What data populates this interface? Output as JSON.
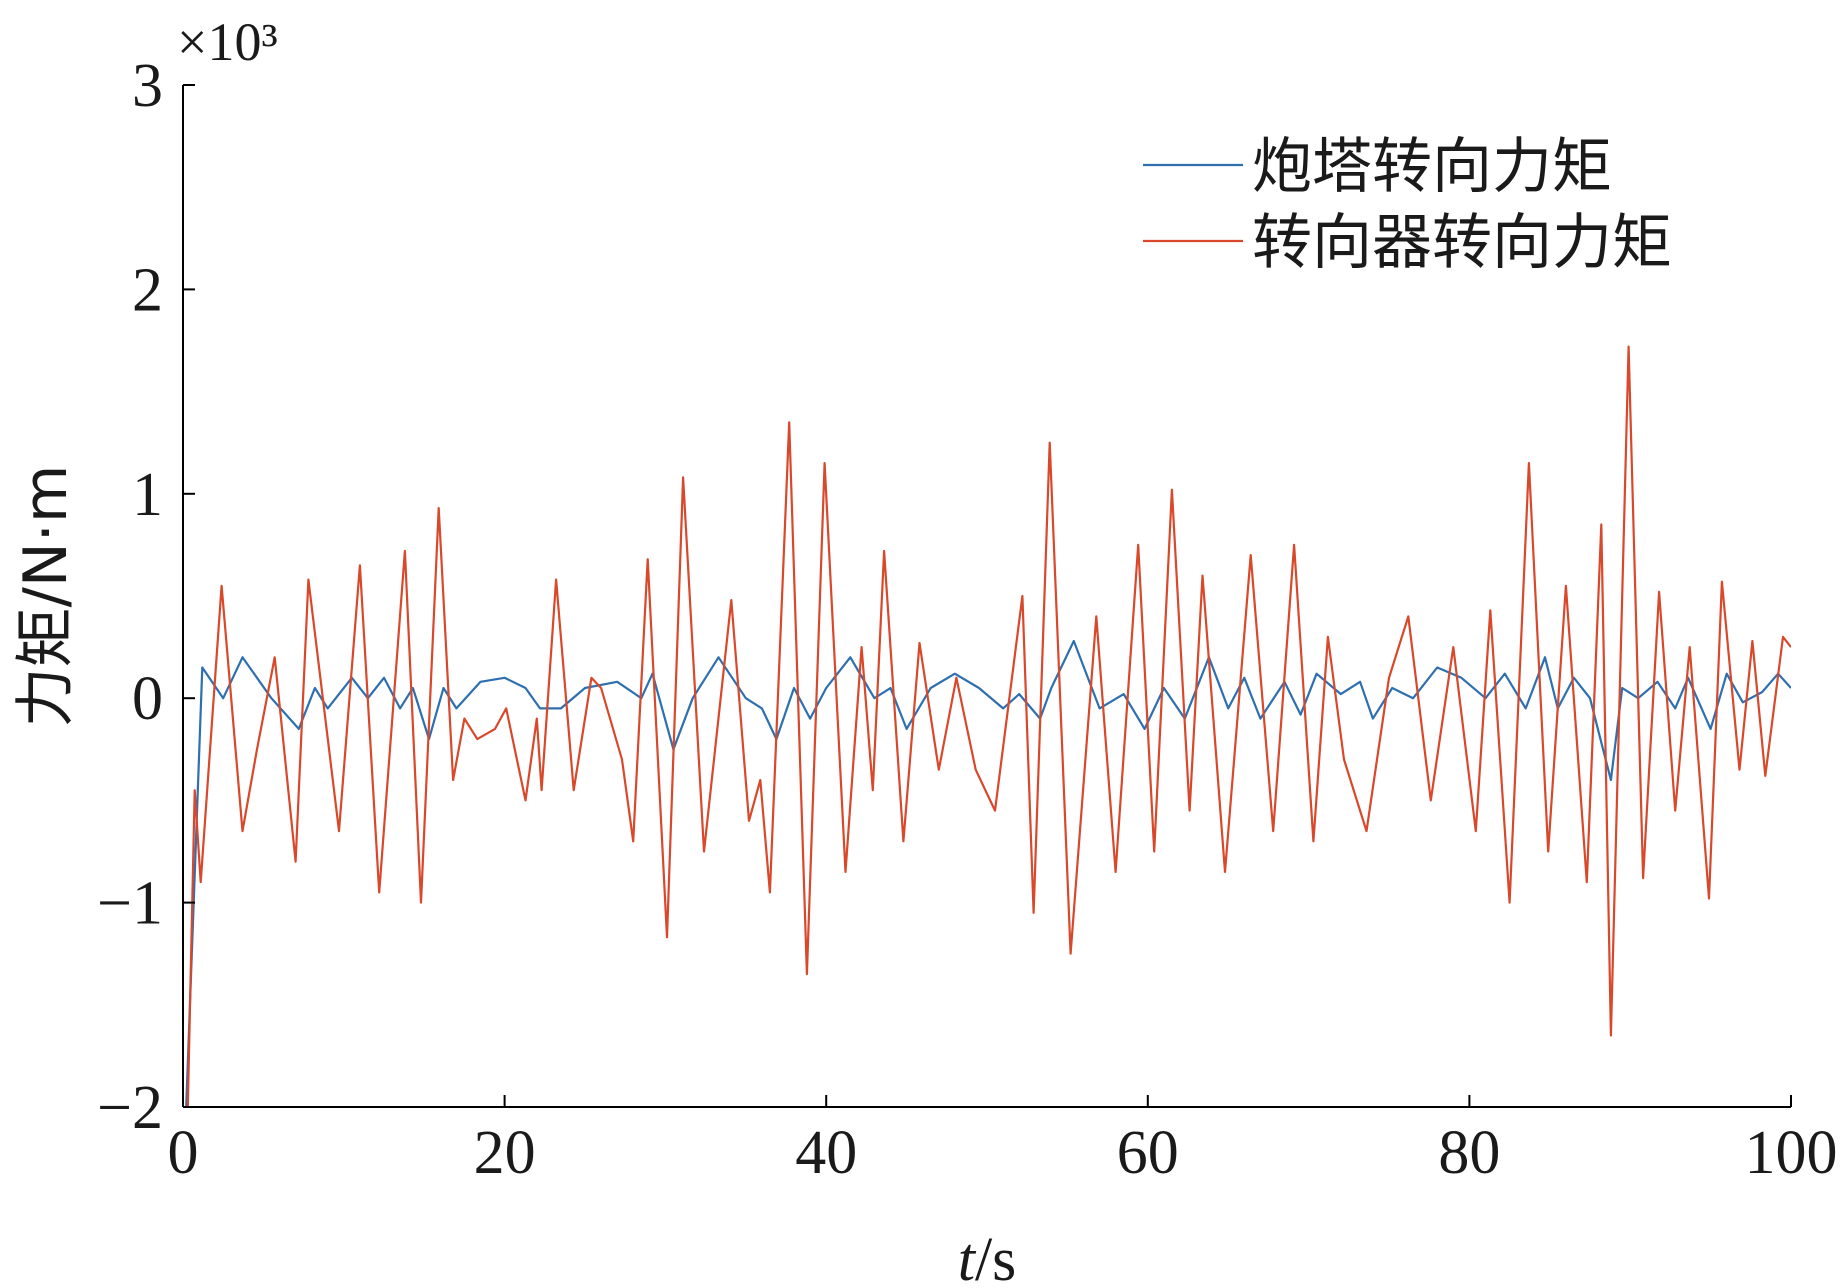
{
  "chart_data": {
    "type": "line",
    "y_multiplier": "×10³",
    "ylabel": "力矩/N·m",
    "xlabel_var": "t",
    "xlabel_unit": "/s",
    "xlim": [
      0,
      100
    ],
    "xticks": [
      0,
      20,
      40,
      60,
      80,
      100
    ],
    "ylim": [
      -2,
      3
    ],
    "yticks": [
      {
        "value": -2,
        "label": "−2"
      },
      {
        "value": -1,
        "label": "−1"
      },
      0,
      1,
      2,
      3
    ],
    "legend": "upper right",
    "series": [
      {
        "name": "炮塔转向力矩",
        "color": "#2e6fb0",
        "x": [
          0.2,
          1.2,
          2.5,
          3.7,
          5.5,
          7.2,
          8.2,
          9.0,
          10.5,
          11.5,
          12.5,
          13.5,
          14.3,
          15.3,
          16.2,
          17.0,
          18.5,
          20,
          21.3,
          22.2,
          23.5,
          25,
          27,
          28.5,
          29.2,
          30.5,
          31.7,
          33.3,
          35,
          36,
          36.9,
          38,
          39,
          40,
          41.5,
          43,
          44,
          45,
          46.5,
          48,
          49.5,
          51,
          52,
          53.3,
          54,
          55.4,
          57,
          58.5,
          59.8,
          61,
          62.3,
          63.8,
          65,
          66,
          67,
          68.5,
          69.5,
          70.5,
          72,
          73.2,
          74,
          75.2,
          76.5,
          78,
          79.5,
          81,
          82.2,
          83.5,
          84.7,
          85.5,
          86.5,
          87.5,
          88.8,
          89.5,
          90.5,
          91.7,
          92.8,
          93.6,
          95,
          96,
          97,
          98.2,
          99.2,
          100
        ],
        "values": [
          -2,
          0.15,
          0.0,
          0.2,
          0.0,
          -0.15,
          0.05,
          -0.05,
          0.1,
          0.0,
          0.1,
          -0.05,
          0.05,
          -0.2,
          0.05,
          -0.05,
          0.08,
          0.1,
          0.05,
          -0.05,
          -0.05,
          0.05,
          0.08,
          0.0,
          0.12,
          -0.25,
          0.0,
          0.2,
          0.0,
          -0.05,
          -0.2,
          0.05,
          -0.1,
          0.05,
          0.2,
          0.0,
          0.05,
          -0.15,
          0.05,
          0.12,
          0.05,
          -0.05,
          0.02,
          -0.1,
          0.05,
          0.28,
          -0.05,
          0.02,
          -0.15,
          0.05,
          -0.1,
          0.2,
          -0.05,
          0.1,
          -0.1,
          0.08,
          -0.08,
          0.12,
          0.02,
          0.08,
          -0.1,
          0.05,
          0.0,
          0.15,
          0.1,
          0.0,
          0.12,
          -0.05,
          0.2,
          -0.05,
          0.1,
          0.0,
          -0.4,
          0.05,
          0.0,
          0.08,
          -0.05,
          0.1,
          -0.15,
          0.12,
          -0.02,
          0.03,
          0.12,
          0.05
        ]
      },
      {
        "name": "转向器转向力矩",
        "color": "#d9482a",
        "x": [
          0.3,
          0.73,
          1.1,
          2.4,
          3.7,
          4.6,
          5.7,
          7.0,
          7.8,
          9.7,
          11.0,
          12.2,
          13.8,
          14.8,
          15.9,
          16.8,
          17.5,
          18.3,
          19.4,
          20.1,
          21.3,
          22.0,
          22.3,
          23.2,
          24.3,
          25.4,
          26.0,
          27.3,
          28.0,
          28.9,
          30.1,
          31.1,
          32.4,
          34.1,
          35.2,
          35.9,
          36.5,
          37.7,
          38.8,
          39.9,
          41.2,
          42.2,
          42.9,
          43.6,
          44.8,
          45.8,
          47.0,
          48.1,
          49.3,
          50.5,
          52.2,
          52.9,
          53.9,
          55.2,
          56.8,
          58.0,
          59.4,
          60.4,
          61.5,
          62.6,
          63.4,
          64.8,
          66.4,
          67.8,
          69.1,
          70.3,
          71.2,
          72.2,
          73.6,
          75.0,
          76.2,
          77.6,
          79.0,
          80.4,
          81.3,
          82.5,
          83.7,
          84.9,
          86.0,
          87.3,
          88.2,
          88.8,
          89.9,
          90.8,
          91.8,
          92.8,
          93.7,
          94.9,
          95.7,
          96.8,
          97.6,
          98.4,
          99.5,
          100
        ],
        "values": [
          -2,
          -0.45,
          -0.9,
          0.55,
          -0.65,
          -0.25,
          0.2,
          -0.8,
          0.58,
          -0.65,
          0.65,
          -0.95,
          0.72,
          -1.0,
          0.93,
          -0.4,
          -0.1,
          -0.2,
          -0.15,
          -0.05,
          -0.5,
          -0.1,
          -0.45,
          0.58,
          -0.45,
          0.1,
          0.05,
          -0.3,
          -0.7,
          0.68,
          -1.17,
          1.08,
          -0.75,
          0.48,
          -0.6,
          -0.4,
          -0.95,
          1.35,
          -1.35,
          1.15,
          -0.85,
          0.25,
          -0.45,
          0.72,
          -0.7,
          0.27,
          -0.35,
          0.1,
          -0.35,
          -0.55,
          0.5,
          -1.05,
          1.25,
          -1.25,
          0.4,
          -0.85,
          0.75,
          -0.75,
          1.02,
          -0.55,
          0.6,
          -0.85,
          0.7,
          -0.65,
          0.75,
          -0.7,
          0.3,
          -0.3,
          -0.65,
          0.1,
          0.4,
          -0.5,
          0.25,
          -0.65,
          0.43,
          -1.0,
          1.15,
          -0.75,
          0.55,
          -0.9,
          0.85,
          -1.65,
          1.72,
          -0.88,
          0.52,
          -0.55,
          0.25,
          -0.98,
          0.57,
          -0.35,
          0.28,
          -0.38,
          0.3,
          0.25
        ]
      }
    ]
  }
}
